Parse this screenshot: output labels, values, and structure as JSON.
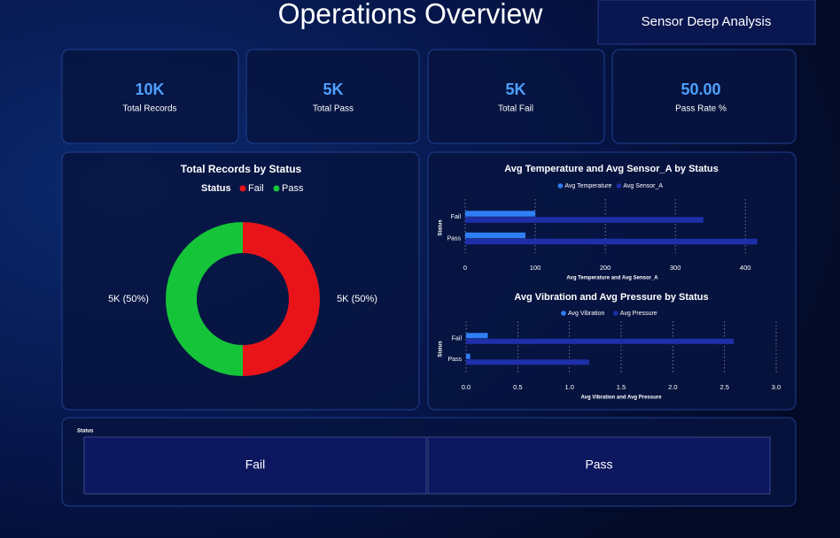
{
  "header": {
    "title": "Operations Overview",
    "button": "Sensor Deep Analysis"
  },
  "kpis": [
    {
      "value": "10K",
      "label": "Total Records"
    },
    {
      "value": "5K",
      "label": "Total Pass"
    },
    {
      "value": "5K",
      "label": "Total Fail"
    },
    {
      "value": "50.00",
      "label": "Pass Rate %"
    }
  ],
  "chart_data": [
    {
      "type": "pie",
      "title": "Total Records by Status",
      "legend_title": "Status",
      "categories": [
        "Fail",
        "Pass"
      ],
      "values": [
        5000,
        5000
      ],
      "value_labels": [
        "5K (50%)",
        "5K (50%)"
      ],
      "colors": [
        "#e8141a",
        "#16c43a"
      ]
    },
    {
      "type": "bar",
      "orientation": "horizontal",
      "title": "Avg Temperature and Avg Sensor_A by Status",
      "categories": [
        "Fail",
        "Pass"
      ],
      "series": [
        {
          "name": "Avg Temperature",
          "color": "#2f7ef5",
          "values": [
            100,
            86
          ]
        },
        {
          "name": "Avg Sensor_A",
          "color": "#1e2fa8",
          "values": [
            340,
            417
          ]
        }
      ],
      "x_label": "Avg Temperature and Avg Sensor_A",
      "y_label": "Status",
      "xlim": [
        0,
        420
      ],
      "xticks": [
        0,
        100,
        200,
        300,
        400
      ],
      "grid": true
    },
    {
      "type": "bar",
      "orientation": "horizontal",
      "title": "Avg Vibration and Avg Pressure by Status",
      "categories": [
        "Fail",
        "Pass"
      ],
      "series": [
        {
          "name": "Avg Vibration",
          "color": "#2f7ef5",
          "values": [
            0.21,
            0.04
          ]
        },
        {
          "name": "Avg Pressure",
          "color": "#1e2fa8",
          "values": [
            2.59,
            1.19
          ]
        }
      ],
      "x_label": "Avg Vibration and Avg Pressure",
      "y_label": "Status",
      "xlim": [
        0,
        3.0
      ],
      "xticks": [
        {
          "value": 0,
          "label": "0.0"
        },
        0.5,
        {
          "value": 1,
          "label": "1.0"
        },
        1.5,
        {
          "value": 2,
          "label": "2.0"
        },
        2.5,
        {
          "value": 3,
          "label": "3.0"
        }
      ],
      "grid": true
    }
  ],
  "slicer": {
    "title": "Status",
    "options": [
      "Fail",
      "Pass"
    ]
  }
}
